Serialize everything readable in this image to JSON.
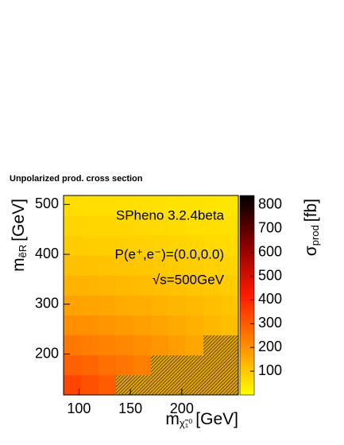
{
  "chart_data": {
    "type": "heatmap",
    "title": "Unpolarized prod. cross section",
    "annotations": [
      "SPheno 3.2.4beta",
      "P(e⁺,e⁻)=(0.0,0.0)",
      "√s=500GeV"
    ],
    "xlabel": {
      "symbol": "m",
      "subscript": "χ̃₁⁰",
      "unit": "[GeV]"
    },
    "ylabel": {
      "symbol": "m",
      "subscript": "ẽR",
      "unit": "[GeV]"
    },
    "zlabel": {
      "symbol": "σ",
      "subscript": "prod",
      "unit": "[fb]"
    },
    "xbins": [
      85,
      102,
      119,
      136,
      153,
      170,
      187,
      204,
      221,
      238,
      255
    ],
    "ybins": [
      118,
      158,
      198,
      238,
      278,
      318,
      358,
      398,
      438,
      478,
      518
    ],
    "z": [
      [
        340,
        320,
        300,
        null,
        null,
        null,
        null,
        null,
        null,
        null
      ],
      [
        290,
        280,
        265,
        250,
        235,
        null,
        null,
        null,
        null,
        null
      ],
      [
        245,
        238,
        228,
        218,
        205,
        192,
        178,
        162,
        null,
        null
      ],
      [
        205,
        200,
        192,
        184,
        175,
        166,
        156,
        145,
        132,
        118
      ],
      [
        170,
        166,
        160,
        154,
        148,
        141,
        134,
        126,
        118,
        108
      ],
      [
        140,
        137,
        133,
        128,
        123,
        118,
        112,
        106,
        100,
        93
      ],
      [
        115,
        113,
        110,
        106,
        102,
        98,
        94,
        89,
        84,
        79
      ],
      [
        94,
        92,
        90,
        87,
        84,
        81,
        78,
        74,
        70,
        66
      ],
      [
        77,
        75,
        73,
        71,
        69,
        67,
        64,
        61,
        58,
        55
      ],
      [
        62,
        61,
        60,
        58,
        56,
        54,
        52,
        50,
        48,
        46
      ]
    ],
    "xlim": [
      85,
      255
    ],
    "ylim": [
      118,
      518
    ],
    "zlim": [
      0,
      840
    ],
    "xticks": [
      100,
      150,
      200
    ],
    "yticks": [
      200,
      300,
      400,
      500
    ],
    "zticks": [
      100,
      200,
      300,
      400,
      500,
      600,
      700,
      800
    ],
    "colormap": [
      "#ffff00",
      "#ff8c00",
      "#ff1a00",
      "#8b0000",
      "#000000"
    ]
  }
}
